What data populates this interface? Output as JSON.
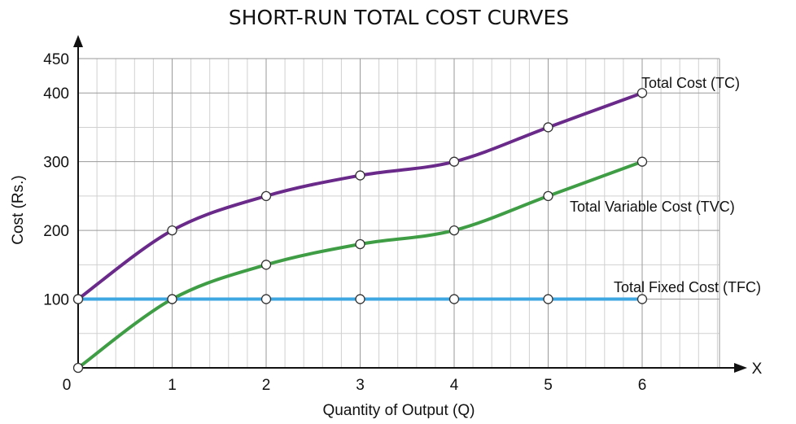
{
  "chart_data": {
    "type": "line",
    "title": "SHORT-RUN TOTAL COST CURVES",
    "xlabel": "Quantity of Output (Q)",
    "ylabel": "Cost (Rs.)",
    "x_axis_letter": "X",
    "x": [
      0,
      1,
      2,
      3,
      4,
      5,
      6
    ],
    "xlim": [
      0,
      7
    ],
    "ylim": [
      0,
      450
    ],
    "x_ticks": [
      "0",
      "1",
      "2",
      "3",
      "4",
      "5",
      "6"
    ],
    "y_ticks": [
      {
        "value": 100,
        "label": "100"
      },
      {
        "value": 200,
        "label": "200"
      },
      {
        "value": 300,
        "label": "300"
      },
      {
        "value": 400,
        "label": "400"
      },
      {
        "value": 450,
        "label": "450"
      }
    ],
    "grid": true,
    "series": [
      {
        "name": "Total Cost (TC)",
        "color": "#6a2a8a",
        "values": [
          100,
          200,
          250,
          280,
          300,
          350,
          400
        ]
      },
      {
        "name": "Total Variable Cost (TVC)",
        "color": "#3f9e45",
        "values": [
          0,
          100,
          150,
          180,
          200,
          250,
          300
        ]
      },
      {
        "name": "Total Fixed Cost (TFC)",
        "color": "#3ea6e0",
        "values": [
          100,
          100,
          100,
          100,
          100,
          100,
          100
        ]
      }
    ]
  }
}
